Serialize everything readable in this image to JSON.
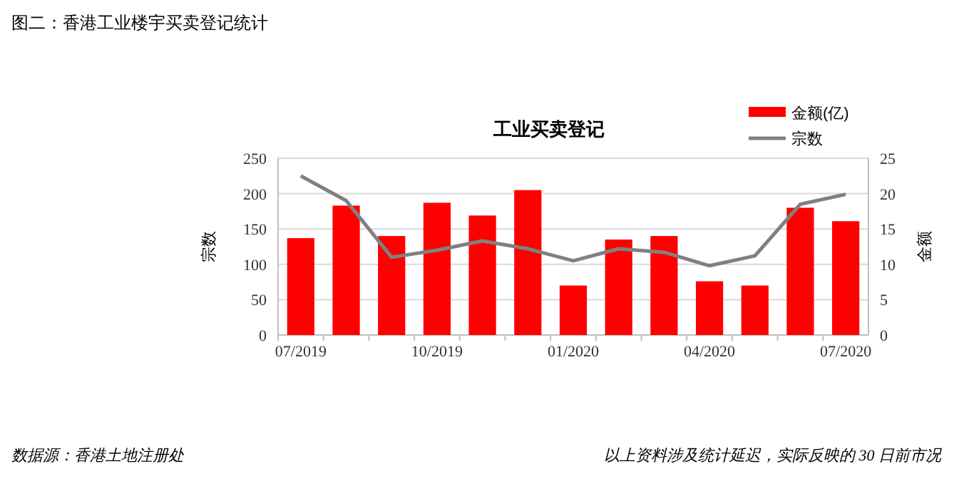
{
  "chart_data": {
    "type": "bar",
    "title": "工业买卖登记",
    "subtitle": "图二：香港工业楼宇买卖登记统计",
    "ylabel": "宗数",
    "y2label": "金额",
    "categories": [
      "07/2019",
      null,
      null,
      "10/2019",
      null,
      null,
      "01/2020",
      null,
      null,
      "04/2020",
      null,
      null,
      "07/2020"
    ],
    "series": [
      {
        "name": "金额(亿)",
        "axis": "y2",
        "color": "#ff0000",
        "values": [
          13.7,
          18.3,
          14.0,
          18.7,
          16.9,
          20.5,
          7.0,
          13.5,
          14.0,
          7.6,
          7.0,
          18.0,
          16.1
        ]
      },
      {
        "name": "宗数",
        "type": "line",
        "color": "#808080",
        "values": [
          225,
          190,
          110,
          120,
          133,
          122,
          105,
          122,
          117,
          98,
          112,
          185,
          199
        ]
      }
    ],
    "ylim": [
      0,
      250
    ],
    "yticks": [
      0,
      50,
      100,
      150,
      200,
      250
    ],
    "y2lim": [
      0,
      25
    ],
    "y2ticks": [
      0,
      5,
      10,
      15,
      20,
      25
    ],
    "grid": "y",
    "legend": "top right",
    "marker": "none",
    "line_style": "solid",
    "annotations": [
      "数据源：香港土地注册处",
      "以上资料涉及统计延迟，实际反映的 30 日前市况"
    ]
  }
}
